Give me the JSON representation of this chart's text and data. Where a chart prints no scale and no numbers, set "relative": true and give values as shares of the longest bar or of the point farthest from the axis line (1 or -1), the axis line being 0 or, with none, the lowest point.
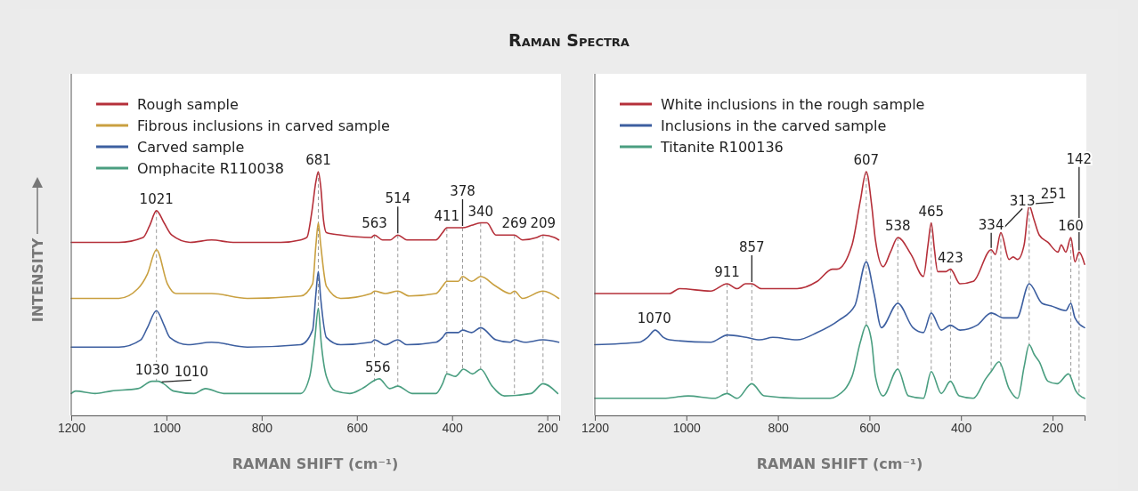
{
  "chart_data": [
    {
      "type": "line",
      "title": "Raman Spectra",
      "xlabel": "RAMAN SHIFT (cm⁻¹)",
      "ylabel": "INTENSITY",
      "relative": true,
      "legend": "top left",
      "xlim": [
        1200,
        175
      ],
      "xticks": [
        1200,
        1000,
        800,
        600,
        400,
        200
      ],
      "tick_labels": "x",
      "line_style": "solid",
      "series": [
        {
          "name": "Rough sample",
          "color": "#b5303a",
          "x": [
            1200,
            1100,
            1049,
            1035,
            1021,
            1005,
            989,
            950,
            905,
            860,
            830,
            760,
            718,
            705,
            695,
            686,
            681,
            676,
            670,
            664,
            634,
            570,
            563,
            546,
            530,
            514,
            495,
            460,
            434,
            420,
            411,
            383,
            378,
            359,
            340,
            327,
            308,
            284,
            269,
            252,
            222,
            209,
            185,
            176
          ],
          "values": [
            0.71,
            0.71,
            0.73,
            0.78,
            0.84,
            0.79,
            0.74,
            0.71,
            0.72,
            0.71,
            0.71,
            0.71,
            0.72,
            0.73,
            0.83,
            0.96,
            1,
            0.94,
            0.8,
            0.75,
            0.74,
            0.73,
            0.74,
            0.72,
            0.72,
            0.74,
            0.72,
            0.72,
            0.72,
            0.75,
            0.77,
            0.77,
            0.77,
            0.78,
            0.79,
            0.79,
            0.74,
            0.74,
            0.74,
            0.72,
            0.73,
            0.74,
            0.73,
            0.72
          ]
        },
        {
          "name": "Fibrous inclusions in carved sample",
          "color": "#c9a040",
          "x": [
            1200,
            1100,
            1060,
            1040,
            1021,
            998,
            980,
            905,
            830,
            718,
            693,
            686,
            681,
            676,
            664,
            634,
            570,
            563,
            540,
            514,
            490,
            434,
            420,
            411,
            387,
            378,
            359,
            340,
            308,
            278,
            269,
            252,
            209,
            176
          ],
          "values": [
            0.48,
            0.48,
            0.52,
            0.58,
            0.68,
            0.54,
            0.5,
            0.5,
            0.48,
            0.49,
            0.54,
            0.7,
            0.79,
            0.7,
            0.53,
            0.48,
            0.5,
            0.51,
            0.5,
            0.51,
            0.49,
            0.5,
            0.53,
            0.55,
            0.55,
            0.57,
            0.55,
            0.57,
            0.53,
            0.5,
            0.51,
            0.48,
            0.51,
            0.48
          ]
        },
        {
          "name": "Carved sample",
          "color": "#3d5fa0",
          "x": [
            1200,
            1100,
            1054,
            1040,
            1021,
            1005,
            993,
            955,
            905,
            830,
            718,
            693,
            686,
            681,
            676,
            664,
            634,
            570,
            563,
            540,
            514,
            495,
            434,
            420,
            411,
            387,
            378,
            359,
            340,
            308,
            278,
            269,
            247,
            209,
            176
          ],
          "values": [
            0.28,
            0.28,
            0.31,
            0.36,
            0.43,
            0.37,
            0.32,
            0.29,
            0.3,
            0.28,
            0.29,
            0.35,
            0.5,
            0.59,
            0.48,
            0.32,
            0.29,
            0.3,
            0.31,
            0.29,
            0.31,
            0.29,
            0.3,
            0.32,
            0.34,
            0.34,
            0.35,
            0.34,
            0.36,
            0.31,
            0.3,
            0.31,
            0.3,
            0.31,
            0.3
          ]
        },
        {
          "name": "Omphacite R110038",
          "color": "#4a9e80",
          "x": [
            1200,
            1191,
            1150,
            1116,
            1060,
            1030,
            1017,
            1006,
            985,
            942,
            918,
            880,
            760,
            718,
            699,
            688,
            681,
            675,
            664,
            645,
            615,
            589,
            553,
            531,
            514,
            484,
            434,
            420,
            411,
            393,
            376,
            357,
            340,
            316,
            290,
            234,
            209,
            178
          ],
          "values": [
            0.09,
            0.1,
            0.09,
            0.1,
            0.11,
            0.14,
            0.14,
            0.13,
            0.1,
            0.09,
            0.11,
            0.09,
            0.09,
            0.09,
            0.16,
            0.32,
            0.44,
            0.3,
            0.16,
            0.1,
            0.09,
            0.11,
            0.15,
            0.11,
            0.12,
            0.09,
            0.09,
            0.13,
            0.17,
            0.16,
            0.19,
            0.17,
            0.19,
            0.12,
            0.08,
            0.09,
            0.13,
            0.09
          ]
        }
      ],
      "annotations": [
        {
          "text": "1021",
          "x": 1021,
          "y": 0.84
        },
        {
          "text": "681",
          "x": 681,
          "y": 1
        },
        {
          "text": "563",
          "x": 563,
          "y": 0.74
        },
        {
          "text": "514",
          "x": 514,
          "y": 0.74
        },
        {
          "text": "411",
          "x": 411,
          "y": 0.77
        },
        {
          "text": "378",
          "x": 378,
          "y": 0.77
        },
        {
          "text": "340",
          "x": 340,
          "y": 0.79
        },
        {
          "text": "269",
          "x": 269,
          "y": 0.74
        },
        {
          "text": "209",
          "x": 209,
          "y": 0.74
        },
        {
          "text": "1030",
          "x": 1030,
          "y": 0.14
        },
        {
          "text": "1010",
          "x": 1010,
          "y": 0.13
        },
        {
          "text": "556",
          "x": 556,
          "y": 0.15
        }
      ]
    },
    {
      "type": "line",
      "xlabel": "RAMAN SHIFT (cm⁻¹)",
      "relative": true,
      "legend": "top left",
      "xlim": [
        1200,
        130
      ],
      "xticks": [
        1200,
        1000,
        800,
        600,
        400,
        200
      ],
      "tick_labels": "x",
      "line_style": "solid",
      "series": [
        {
          "name": "White inclusions in the rough sample",
          "color": "#b5303a",
          "x": [
            1200,
            1100,
            1037,
            1015,
            947,
            911,
            889,
            871,
            857,
            836,
            758,
            714,
            681,
            671,
            638,
            620,
            607,
            595,
            587,
            570,
            554,
            538,
            509,
            482,
            472,
            465,
            458,
            451,
            433,
            423,
            402,
            373,
            334,
            325,
            313,
            295,
            286,
            276,
            262,
            251,
            240,
            229,
            210,
            188,
            181,
            171,
            160,
            151,
            142,
            130
          ],
          "values": [
            0.5,
            0.5,
            0.5,
            0.52,
            0.51,
            0.54,
            0.52,
            0.54,
            0.54,
            0.52,
            0.52,
            0.55,
            0.6,
            0.6,
            0.7,
            0.88,
            1,
            0.86,
            0.72,
            0.61,
            0.67,
            0.73,
            0.66,
            0.57,
            0.7,
            0.79,
            0.68,
            0.59,
            0.59,
            0.6,
            0.54,
            0.55,
            0.68,
            0.66,
            0.75,
            0.64,
            0.65,
            0.64,
            0.7,
            0.86,
            0.8,
            0.74,
            0.71,
            0.67,
            0.7,
            0.67,
            0.73,
            0.63,
            0.67,
            0.62
          ]
        },
        {
          "name": "Inclusions in the carved sample",
          "color": "#3d5fa0",
          "x": [
            1200,
            1103,
            1085,
            1068,
            1050,
            1037,
            947,
            910,
            869,
            840,
            811,
            758,
            714,
            667,
            632,
            607,
            590,
            574,
            538,
            505,
            482,
            465,
            443,
            423,
            402,
            365,
            334,
            307,
            278,
            251,
            223,
            204,
            171,
            160,
            151,
            130
          ],
          "values": [
            0.29,
            0.3,
            0.32,
            0.35,
            0.32,
            0.31,
            0.3,
            0.33,
            0.32,
            0.31,
            0.32,
            0.31,
            0.34,
            0.39,
            0.45,
            0.63,
            0.5,
            0.36,
            0.46,
            0.36,
            0.34,
            0.42,
            0.35,
            0.37,
            0.35,
            0.37,
            0.42,
            0.4,
            0.4,
            0.54,
            0.46,
            0.45,
            0.43,
            0.46,
            0.4,
            0.36
          ]
        },
        {
          "name": "Titanite R100136",
          "color": "#4a9e80",
          "x": [
            1200,
            1050,
            996,
            939,
            911,
            889,
            857,
            830,
            752,
            686,
            671,
            638,
            620,
            607,
            595,
            587,
            570,
            538,
            515,
            482,
            465,
            443,
            423,
            404,
            373,
            346,
            334,
            317,
            295,
            276,
            262,
            251,
            240,
            229,
            210,
            190,
            165,
            149,
            130
          ],
          "values": [
            0.07,
            0.07,
            0.08,
            0.07,
            0.09,
            0.07,
            0.13,
            0.08,
            0.07,
            0.07,
            0.08,
            0.16,
            0.3,
            0.37,
            0.3,
            0.16,
            0.08,
            0.19,
            0.08,
            0.07,
            0.18,
            0.09,
            0.14,
            0.08,
            0.07,
            0.15,
            0.18,
            0.22,
            0.11,
            0.07,
            0.2,
            0.29,
            0.25,
            0.22,
            0.14,
            0.13,
            0.17,
            0.1,
            0.07
          ]
        }
      ],
      "annotations": [
        {
          "text": "1070",
          "x": 1070,
          "y": 0.35
        },
        {
          "text": "911",
          "x": 911,
          "y": 0.54
        },
        {
          "text": "857",
          "x": 857,
          "y": 0.54
        },
        {
          "text": "607",
          "x": 607,
          "y": 1
        },
        {
          "text": "538",
          "x": 538,
          "y": 0.73
        },
        {
          "text": "465",
          "x": 465,
          "y": 0.79
        },
        {
          "text": "423",
          "x": 423,
          "y": 0.6
        },
        {
          "text": "334",
          "x": 334,
          "y": 0.68
        },
        {
          "text": "313",
          "x": 313,
          "y": 0.75
        },
        {
          "text": "251",
          "x": 251,
          "y": 0.86
        },
        {
          "text": "160",
          "x": 160,
          "y": 0.73
        },
        {
          "text": "142",
          "x": 142,
          "y": 0.67
        }
      ]
    }
  ]
}
